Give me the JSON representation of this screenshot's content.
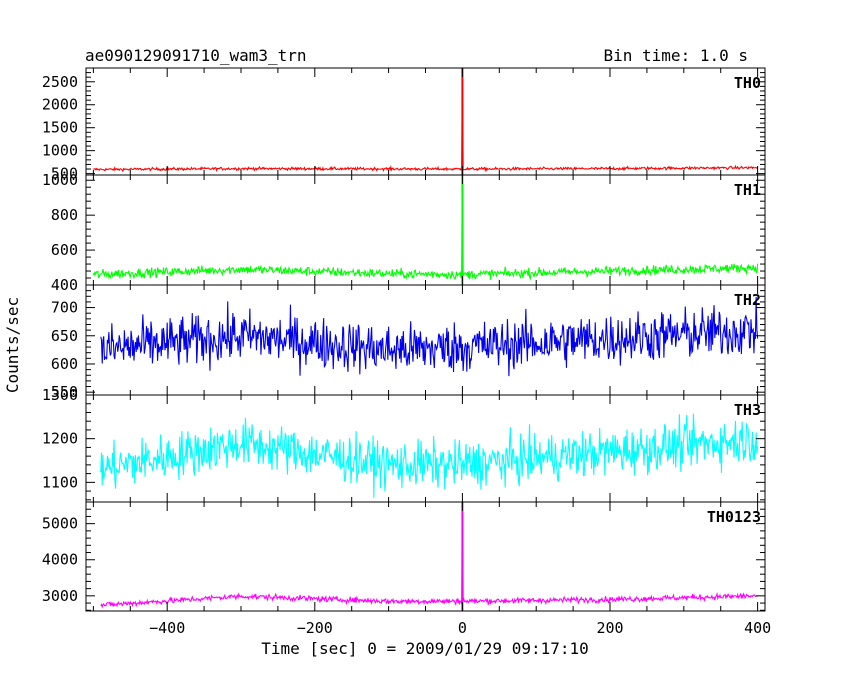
{
  "title": "ae090129091710_wam3_trn",
  "bin_time": "Bin time: 1.0 s",
  "ylabel": "Counts/sec",
  "xlabel": "Time [sec] 0 = 2009/01/29 09:17:10",
  "chart_data": {
    "type": "line",
    "xlim": [
      -510,
      410
    ],
    "x_ticks": [
      -400,
      -200,
      0,
      200,
      400
    ],
    "x_tick_labels": [
      "−400",
      "−200",
      "0",
      "200",
      "400"
    ],
    "grid": false,
    "panels": [
      {
        "name": "TH0",
        "color": "#ff0000",
        "ylim": [
          470,
          2800
        ],
        "y_ticks": [
          500,
          1000,
          1500,
          2000,
          2500
        ],
        "x_start": -500,
        "x_end": 400,
        "mean_points": [
          [
            -500,
            590
          ],
          [
            -300,
            610
          ],
          [
            0,
            600
          ],
          [
            200,
            610
          ],
          [
            400,
            630
          ]
        ],
        "noise": 25,
        "spike": {
          "x": 0,
          "y": 2800
        }
      },
      {
        "name": "TH1",
        "color": "#00ff00",
        "ylim": [
          400,
          1030
        ],
        "y_ticks": [
          400,
          600,
          800,
          1000
        ],
        "x_start": -500,
        "x_end": 400,
        "mean_points": [
          [
            -500,
            460
          ],
          [
            -300,
            490
          ],
          [
            -100,
            465
          ],
          [
            0,
            460
          ],
          [
            200,
            480
          ],
          [
            400,
            500
          ]
        ],
        "noise": 22,
        "spike": {
          "x": 0,
          "y": 1030
        }
      },
      {
        "name": "TH2",
        "color": "#0000ee",
        "ylim": [
          545,
          740
        ],
        "y_ticks": [
          550,
          600,
          650,
          700
        ],
        "x_start": -490,
        "x_end": 400,
        "mean_points": [
          [
            -490,
            625
          ],
          [
            -300,
            650
          ],
          [
            -100,
            625
          ],
          [
            0,
            630
          ],
          [
            200,
            645
          ],
          [
            400,
            660
          ]
        ],
        "noise": 38,
        "spike": null
      },
      {
        "name": "TH3",
        "color": "#00ffff",
        "ylim": [
          1055,
          1300
        ],
        "y_ticks": [
          1100,
          1200,
          1300
        ],
        "x_start": -490,
        "x_end": 400,
        "mean_points": [
          [
            -490,
            1130
          ],
          [
            -300,
            1190
          ],
          [
            -100,
            1140
          ],
          [
            0,
            1140
          ],
          [
            200,
            1170
          ],
          [
            400,
            1200
          ]
        ],
        "noise": 45,
        "spike": null
      },
      {
        "name": "TH0123",
        "color": "#ff00ff",
        "ylim": [
          2580,
          5600
        ],
        "y_ticks": [
          3000,
          4000,
          5000
        ],
        "x_start": -490,
        "x_end": 400,
        "mean_points": [
          [
            -490,
            2740
          ],
          [
            -300,
            2990
          ],
          [
            -100,
            2850
          ],
          [
            0,
            2850
          ],
          [
            200,
            2900
          ],
          [
            400,
            3000
          ]
        ],
        "noise": 65,
        "spike": {
          "x": 0,
          "y": 5600
        }
      }
    ]
  }
}
